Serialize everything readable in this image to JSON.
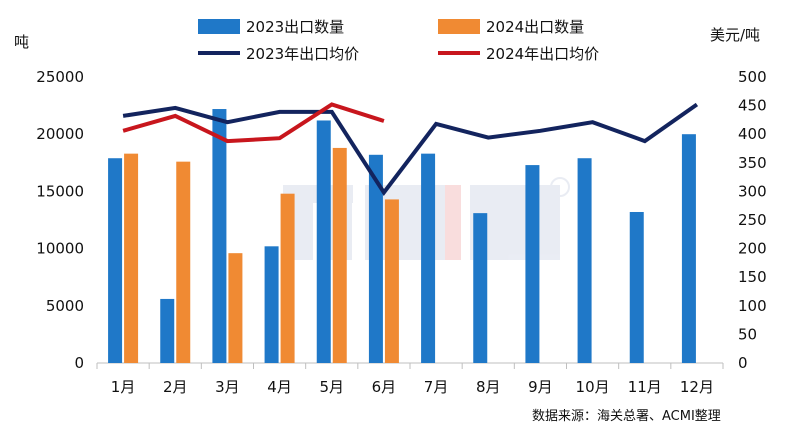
{
  "chart_data": {
    "type": "bar",
    "categories": [
      "1月",
      "2月",
      "3月",
      "4月",
      "5月",
      "6月",
      "7月",
      "8月",
      "9月",
      "10月",
      "11月",
      "12月"
    ],
    "left_unit": "吨",
    "right_unit": "美元/吨",
    "y_left": {
      "min": 0,
      "max": 25000,
      "ticks": [
        0,
        5000,
        10000,
        15000,
        20000,
        25000
      ]
    },
    "y_right": {
      "min": 0,
      "max": 500,
      "ticks": [
        0,
        50,
        100,
        150,
        200,
        250,
        300,
        350,
        400,
        450,
        500
      ]
    },
    "bar_series": [
      {
        "name": "2023出口数量",
        "color": "#1f78c8",
        "values": [
          17900,
          5600,
          22200,
          10200,
          21200,
          18200,
          18300,
          13100,
          17300,
          17900,
          13200,
          20000
        ]
      },
      {
        "name": "2024出口数量",
        "color": "#f08a33",
        "values": [
          18300,
          17600,
          9600,
          14800,
          18800,
          14300,
          null,
          null,
          null,
          null,
          null,
          null
        ]
      }
    ],
    "line_series": [
      {
        "name": "2023年出口均价",
        "color": "#13245e",
        "values": [
          432,
          446,
          421,
          439,
          439,
          298,
          418,
          394,
          406,
          421,
          388,
          452
        ]
      },
      {
        "name": "2024年出口均价",
        "color": "#c8161d",
        "values": [
          406,
          432,
          388,
          393,
          452,
          423,
          null,
          null,
          null,
          null,
          null,
          null
        ]
      }
    ],
    "legend_placement": "top",
    "grid": false
  },
  "watermark": "ACMI",
  "source_note": "数据来源：海关总署、ACMI整理"
}
